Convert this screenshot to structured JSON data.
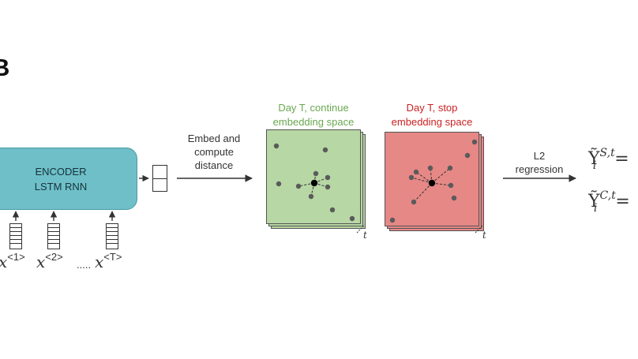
{
  "panel_label": "B",
  "encoder": {
    "line1": "ENCODER",
    "line2": "LSTM RNN"
  },
  "inputs": [
    {
      "base": "x",
      "sup": "<1>"
    },
    {
      "base": "x",
      "sup": "<2>"
    },
    {
      "ellipsis": "....."
    },
    {
      "base": "x",
      "sup": "<T>"
    }
  ],
  "embed": {
    "line1": "Embed and",
    "line2": "compute",
    "line3": "distance"
  },
  "continue_space": {
    "line1": "Day T, continue",
    "line2": "embedding space",
    "color": "#6aa84f",
    "fill": "#b7d7a4"
  },
  "stop_space": {
    "line1": "Day T, stop",
    "line2": "embedding space",
    "color": "#cc2222",
    "fill": "#e58886"
  },
  "time_label": "t",
  "regression": {
    "line1": "L2",
    "line2": "regression"
  },
  "outputs": [
    {
      "symbol": "Ỹ",
      "sup": "S,t",
      "sub": "i",
      "eq": "="
    },
    {
      "symbol": "Ỹ",
      "sup": "C,t",
      "sub": "i",
      "eq": "="
    }
  ]
}
